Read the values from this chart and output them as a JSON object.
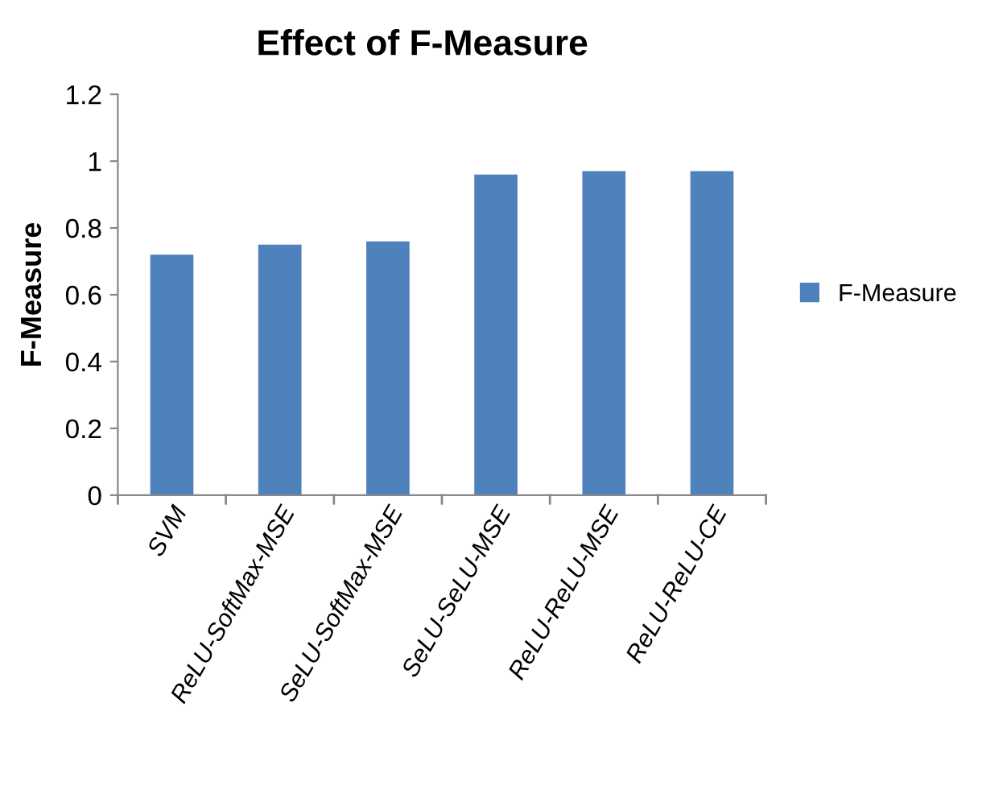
{
  "chart_data": {
    "type": "bar",
    "title": "Effect of F-Measure",
    "ylabel": "F-Measure",
    "categories": [
      "SVM",
      "ReLU-SoftMax-MSE",
      "SeLU-SoftMax-MSE",
      "SeLU-SeLU-MSE",
      "ReLU-ReLU-MSE",
      "ReLU-ReLU-CE"
    ],
    "series": [
      {
        "name": "F-Measure",
        "color": "#4f81bd",
        "values": [
          0.72,
          0.75,
          0.76,
          0.96,
          0.97,
          0.97
        ]
      }
    ],
    "ylim": [
      0,
      1.2
    ],
    "yticks": [
      0,
      0.2,
      0.4,
      0.6,
      0.8,
      1,
      1.2
    ],
    "grid": false,
    "legend": "right"
  }
}
